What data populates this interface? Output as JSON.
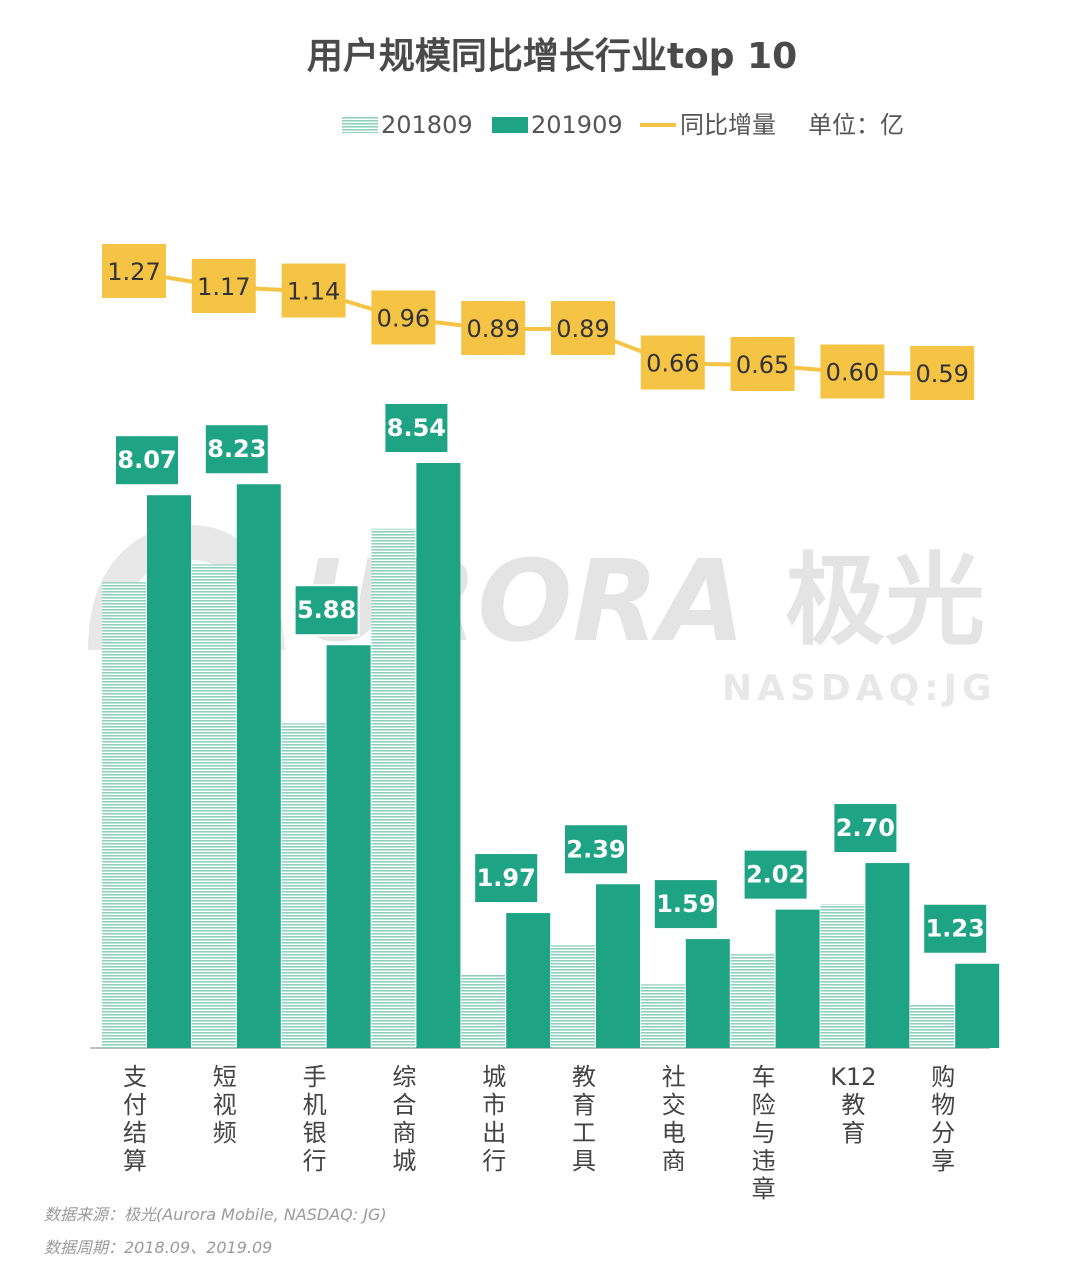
{
  "watermark": {
    "brand": "URORA",
    "brand_cn": "极光",
    "ticker": "NASDAQ:JG"
  },
  "footnotes": {
    "source": "数据来源：极光(Aurora  Mobile, NASDAQ: JG)",
    "period": "数据周期：2018.09、2019.09"
  },
  "colors": {
    "s2018": "#8fd1bc",
    "s2019": "#1fa385",
    "increase": "#f6c445",
    "label_bg": "#1fa385"
  },
  "chart_data": {
    "type": "bar",
    "title": "用户规模同比增长行业top  10",
    "unit": "单位：亿",
    "categories": [
      "支付结算",
      "短视频",
      "手机银行",
      "综合商城",
      "城市出行",
      "教育工具",
      "社交电商",
      "车险与违章",
      "K12教育",
      "购物分享"
    ],
    "series": [
      {
        "name": "201809",
        "values": [
          6.8,
          7.06,
          4.74,
          7.58,
          1.08,
          1.5,
          0.93,
          1.37,
          2.1,
          0.64
        ]
      },
      {
        "name": "201909",
        "values": [
          8.07,
          8.23,
          5.88,
          8.54,
          1.97,
          2.39,
          1.59,
          2.02,
          2.7,
          1.23
        ]
      }
    ],
    "line_series": {
      "name": "同比增量",
      "values": [
        1.27,
        1.17,
        1.14,
        0.96,
        0.89,
        0.89,
        0.66,
        0.65,
        0.6,
        0.59
      ]
    },
    "legend_position": "top-right",
    "grid": false
  }
}
